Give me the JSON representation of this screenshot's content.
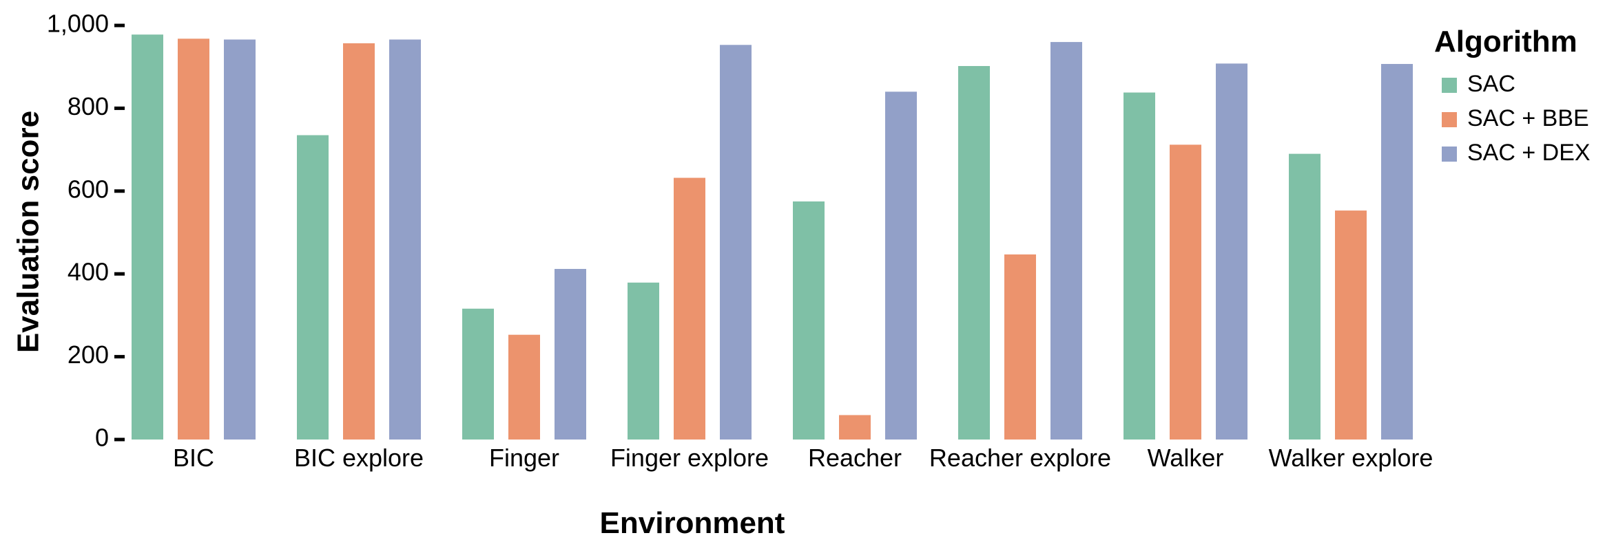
{
  "chart_data": {
    "type": "bar",
    "title": "",
    "xlabel": "Environment",
    "ylabel": "Evaluation score",
    "ylim": [
      0,
      1000
    ],
    "yticks": [
      0,
      200,
      400,
      600,
      800,
      1000
    ],
    "ytick_labels": [
      "0",
      "200",
      "400",
      "600",
      "800",
      "1,000"
    ],
    "grid": false,
    "legend_title": "Algorithm",
    "legend_position": "right",
    "categories": [
      "BIC",
      "BIC explore",
      "Finger",
      "Finger explore",
      "Reacher",
      "Reacher explore",
      "Walker",
      "Walker explore"
    ],
    "series": [
      {
        "name": "SAC",
        "color": "#7fc0a6",
        "values": [
          978,
          735,
          316,
          379,
          575,
          902,
          838,
          690
        ]
      },
      {
        "name": "SAC + BBE",
        "color": "#ec936d",
        "values": [
          968,
          957,
          253,
          632,
          59,
          447,
          712,
          553
        ]
      },
      {
        "name": "SAC + DEX",
        "color": "#92a0c8",
        "values": [
          966,
          966,
          412,
          953,
          840,
          960,
          908,
          907
        ]
      }
    ]
  }
}
